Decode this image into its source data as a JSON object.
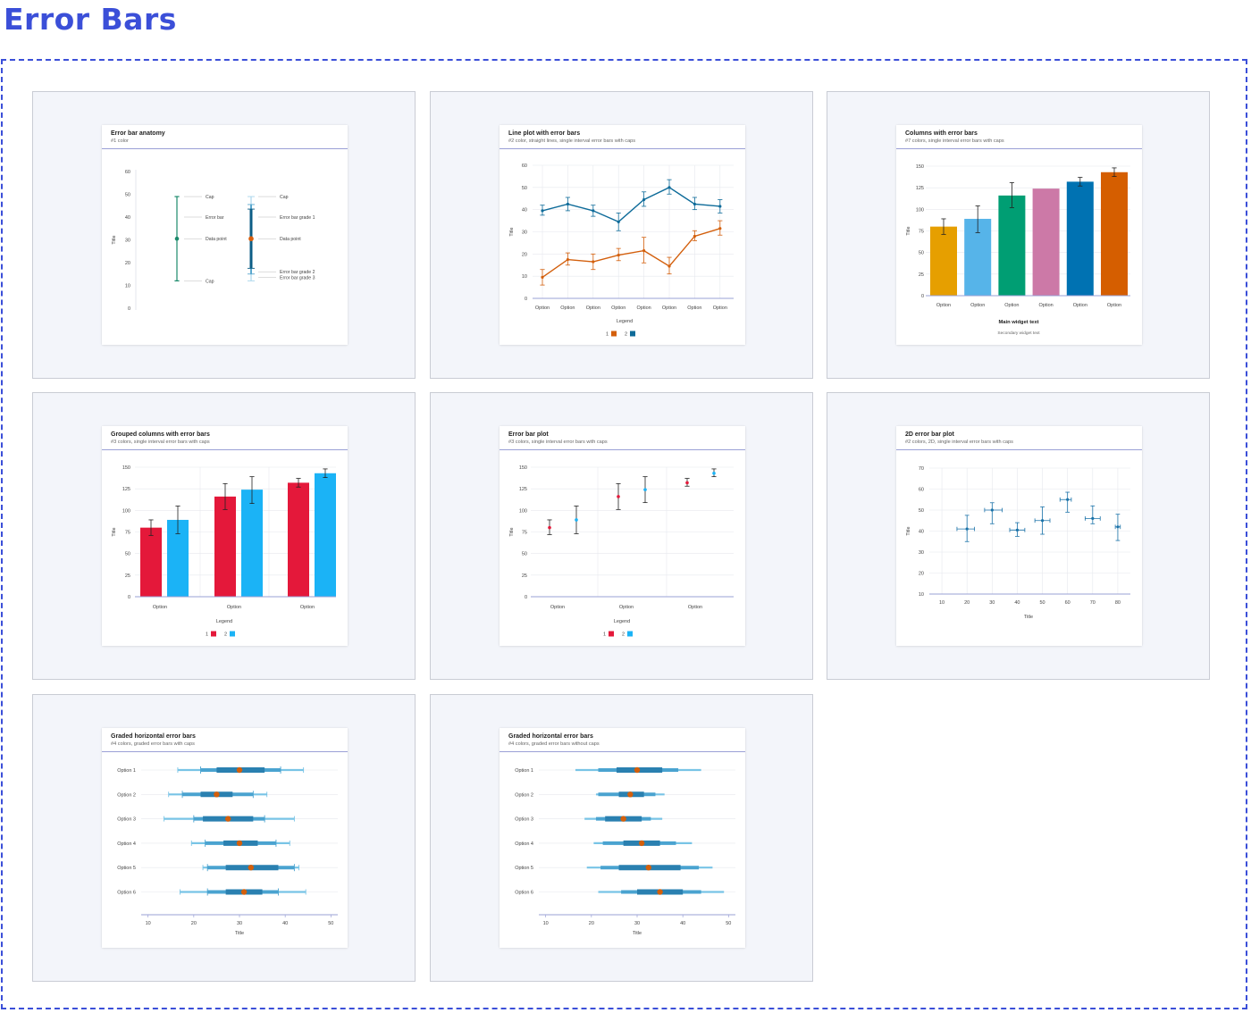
{
  "page": {
    "title": "Error Bars"
  },
  "chart_data": [
    {
      "id": "anatomy",
      "type": "scatter",
      "title": "Error bar anatomy",
      "subtitle": "#1 color",
      "ylabel": "Title",
      "ylim": [
        0,
        60
      ],
      "yticks": [
        0,
        10,
        20,
        30,
        40,
        50,
        60
      ],
      "color": "#1b8a6b",
      "color2": "#0d5e86",
      "point_color": "#d95f0e",
      "simple_bar": {
        "value": 30.5,
        "low": 12,
        "high": 49
      },
      "graded_bar": {
        "value": 30.5,
        "grades": [
          [
            17.5,
            43.5
          ],
          [
            15,
            45.5
          ],
          [
            12,
            49
          ]
        ]
      },
      "annotations_left": [
        {
          "label": "Cap",
          "y": 49
        },
        {
          "label": "Error bar",
          "y": 40
        },
        {
          "label": "Data point",
          "y": 30.5
        },
        {
          "label": "Cap",
          "y": 12
        }
      ],
      "annotations_right": [
        {
          "label": "Cap",
          "y": 49
        },
        {
          "label": "Error bar grade 1",
          "y": 40
        },
        {
          "label": "Data point",
          "y": 30.5
        },
        {
          "label": "Error bar grade 2",
          "y": 16
        },
        {
          "label": "Error bar grade 3",
          "y": 13.5
        }
      ]
    },
    {
      "id": "line",
      "type": "line",
      "title": "Line plot with error bars",
      "subtitle": "#2 color, straight lines, single interval error bars with caps",
      "ylabel": "Title",
      "ylim": [
        0,
        60
      ],
      "yticks": [
        0,
        10,
        20,
        30,
        40,
        50,
        60
      ],
      "categories": [
        "Option",
        "Option",
        "Option",
        "Option",
        "Option",
        "Option",
        "Option",
        "Option"
      ],
      "legend_title": "Legend",
      "series": [
        {
          "name": "1",
          "color": "#d35f0c",
          "values": [
            9.5,
            17.5,
            16.5,
            19.5,
            21.5,
            14.5,
            28,
            31.5
          ],
          "low": [
            6,
            15,
            13,
            17,
            16,
            11,
            26,
            28.5
          ],
          "high": [
            13,
            20.5,
            20,
            22.5,
            27.5,
            18.5,
            30.5,
            35
          ]
        },
        {
          "name": "2",
          "color": "#0e6b99",
          "values": [
            39.5,
            42.5,
            39.5,
            34.5,
            44.5,
            50,
            42.5,
            41.5
          ],
          "low": [
            37.5,
            39.5,
            37,
            30.5,
            41.5,
            47,
            40,
            38.5
          ],
          "high": [
            42,
            45.5,
            42,
            38.5,
            48,
            53.5,
            45.5,
            44.5
          ]
        }
      ]
    },
    {
      "id": "columns",
      "type": "bar",
      "title": "Columns with error bars",
      "subtitle": "#7 colors, single interval error bars with caps",
      "ylabel": "Title",
      "ylim": [
        0,
        150
      ],
      "yticks": [
        0,
        25,
        50,
        75,
        100,
        125,
        150
      ],
      "categories": [
        "Option",
        "Option",
        "Option",
        "Option",
        "Option",
        "Option"
      ],
      "values": [
        80,
        89,
        116,
        124,
        132,
        143
      ],
      "low": [
        71,
        73,
        102,
        null,
        127,
        138
      ],
      "high": [
        89,
        104,
        131,
        null,
        137,
        148
      ],
      "colors": [
        "#e69f00",
        "#56b4e9",
        "#009e73",
        "#cc79a7",
        "#0072b2",
        "#d55e00"
      ],
      "main_text": "Main widget text",
      "secondary_text": "Secondary widget text"
    },
    {
      "id": "grouped",
      "type": "bar",
      "title": "Grouped columns with error bars",
      "subtitle": "#3 colors, single interval error bars with caps",
      "ylabel": "Title",
      "ylim": [
        0,
        150
      ],
      "yticks": [
        0,
        25,
        50,
        75,
        100,
        125,
        150
      ],
      "categories": [
        "Option",
        "Option",
        "Option"
      ],
      "legend_title": "Legend",
      "series": [
        {
          "name": "1",
          "color": "#e4183a",
          "values": [
            80,
            116,
            132
          ],
          "low": [
            71,
            101,
            127
          ],
          "high": [
            89,
            131,
            137
          ]
        },
        {
          "name": "2",
          "color": "#1bb3f6",
          "values": [
            89,
            124,
            143
          ],
          "low": [
            73,
            108,
            138
          ],
          "high": [
            105,
            139,
            148
          ]
        }
      ]
    },
    {
      "id": "errorplot",
      "type": "scatter",
      "title": "Error bar plot",
      "subtitle": "#3 colors, single interval error bars with caps",
      "ylabel": "Title",
      "ylim": [
        0,
        150
      ],
      "yticks": [
        0,
        25,
        50,
        75,
        100,
        125,
        150
      ],
      "categories": [
        "Option",
        "Option",
        "Option"
      ],
      "legend_title": "Legend",
      "series": [
        {
          "name": "1",
          "color": "#e4183a",
          "values": [
            80,
            116,
            132
          ],
          "low": [
            72,
            101,
            128
          ],
          "high": [
            89,
            131,
            137
          ]
        },
        {
          "name": "2",
          "color": "#1bb3f6",
          "values": [
            89,
            124,
            143
          ],
          "low": [
            73,
            109,
            139
          ],
          "high": [
            105,
            139,
            148
          ]
        }
      ]
    },
    {
      "id": "twod",
      "type": "scatter",
      "title": "2D error bar plot",
      "subtitle": "#2 colors, 2D, single interval error bars with caps",
      "ylabel": "Title",
      "xlabel": "Title",
      "xlim": [
        5,
        85
      ],
      "ylim": [
        10,
        70
      ],
      "xticks": [
        10,
        20,
        30,
        40,
        50,
        60,
        70,
        80
      ],
      "yticks": [
        10,
        20,
        30,
        40,
        50,
        60,
        70
      ],
      "color": "#1a72a8",
      "points": [
        {
          "x": 20,
          "y": 41,
          "xlo": 16,
          "xhi": 23,
          "ylo": 35,
          "yhi": 47.5
        },
        {
          "x": 30,
          "y": 50,
          "xlo": 27,
          "xhi": 34,
          "ylo": 43.5,
          "yhi": 53.5
        },
        {
          "x": 40,
          "y": 40.5,
          "xlo": 37,
          "xhi": 43,
          "ylo": 37.5,
          "yhi": 44
        },
        {
          "x": 50,
          "y": 45,
          "xlo": 47,
          "xhi": 53,
          "ylo": 38.5,
          "yhi": 51.5
        },
        {
          "x": 60,
          "y": 55,
          "xlo": 57,
          "xhi": 61.5,
          "ylo": 49,
          "yhi": 58.5
        },
        {
          "x": 70,
          "y": 46,
          "xlo": 67,
          "xhi": 73,
          "ylo": 43.5,
          "yhi": 52
        },
        {
          "x": 80,
          "y": 42,
          "xlo": 79,
          "xhi": 81,
          "ylo": 35.5,
          "yhi": 48
        }
      ]
    },
    {
      "id": "graded_caps",
      "type": "scatter",
      "title": "Graded horizontal error bars",
      "subtitle": "#4 colors, graded error bars with caps",
      "xlabel": "Title",
      "xlim": [
        8.5,
        51.5
      ],
      "xticks": [
        10,
        20,
        30,
        40,
        50
      ],
      "categories": [
        "Option 1",
        "Option 2",
        "Option 3",
        "Option 4",
        "Option 5",
        "Option 6"
      ],
      "colors": [
        "#78c4e6",
        "#4aa3d0",
        "#2a80b0",
        "#d35f0c"
      ],
      "rows": [
        {
          "value": 30,
          "g1": [
            25,
            35.5
          ],
          "g2": [
            21.5,
            39
          ],
          "g3": [
            16.5,
            44
          ]
        },
        {
          "value": 25,
          "g1": [
            21.5,
            28.5
          ],
          "g2": [
            17.5,
            33
          ],
          "g3": [
            14.5,
            36
          ]
        },
        {
          "value": 27.5,
          "g1": [
            22,
            33
          ],
          "g2": [
            20,
            35.5
          ],
          "g3": [
            13.5,
            42
          ]
        },
        {
          "value": 30,
          "g1": [
            26.5,
            34
          ],
          "g2": [
            22.5,
            38
          ],
          "g3": [
            19.5,
            41
          ]
        },
        {
          "value": 32.5,
          "g1": [
            27,
            38.5
          ],
          "g2": [
            23,
            42
          ],
          "g3": [
            22,
            43
          ]
        },
        {
          "value": 31,
          "g1": [
            27,
            35
          ],
          "g2": [
            23,
            38.5
          ],
          "g3": [
            17,
            44.5
          ]
        }
      ]
    },
    {
      "id": "graded_nocaps",
      "type": "scatter",
      "title": "Graded horizontal error bars",
      "subtitle": "#4 colors, graded error bars without caps",
      "xlabel": "Title",
      "xlim": [
        8.5,
        51.5
      ],
      "xticks": [
        10,
        20,
        30,
        40,
        50
      ],
      "categories": [
        "Option 1",
        "Option 2",
        "Option 3",
        "Option 4",
        "Option 5",
        "Option 6"
      ],
      "colors": [
        "#78c4e6",
        "#4aa3d0",
        "#2a80b0",
        "#d35f0c"
      ],
      "rows": [
        {
          "value": 30,
          "g1": [
            25.5,
            35.5
          ],
          "g2": [
            21.5,
            39
          ],
          "g3": [
            16.5,
            44
          ]
        },
        {
          "value": 28.5,
          "g1": [
            26,
            31.5
          ],
          "g2": [
            21.5,
            34
          ],
          "g3": [
            21,
            36
          ]
        },
        {
          "value": 27,
          "g1": [
            23,
            31
          ],
          "g2": [
            21,
            33
          ],
          "g3": [
            18.5,
            35.5
          ]
        },
        {
          "value": 31,
          "g1": [
            27,
            35
          ],
          "g2": [
            22.5,
            38.5
          ],
          "g3": [
            20.5,
            42
          ]
        },
        {
          "value": 32.5,
          "g1": [
            26,
            39.5
          ],
          "g2": [
            22,
            43.5
          ],
          "g3": [
            19,
            46.5
          ]
        },
        {
          "value": 35,
          "g1": [
            30,
            40
          ],
          "g2": [
            26.5,
            44
          ],
          "g3": [
            21.5,
            49
          ]
        }
      ]
    }
  ]
}
